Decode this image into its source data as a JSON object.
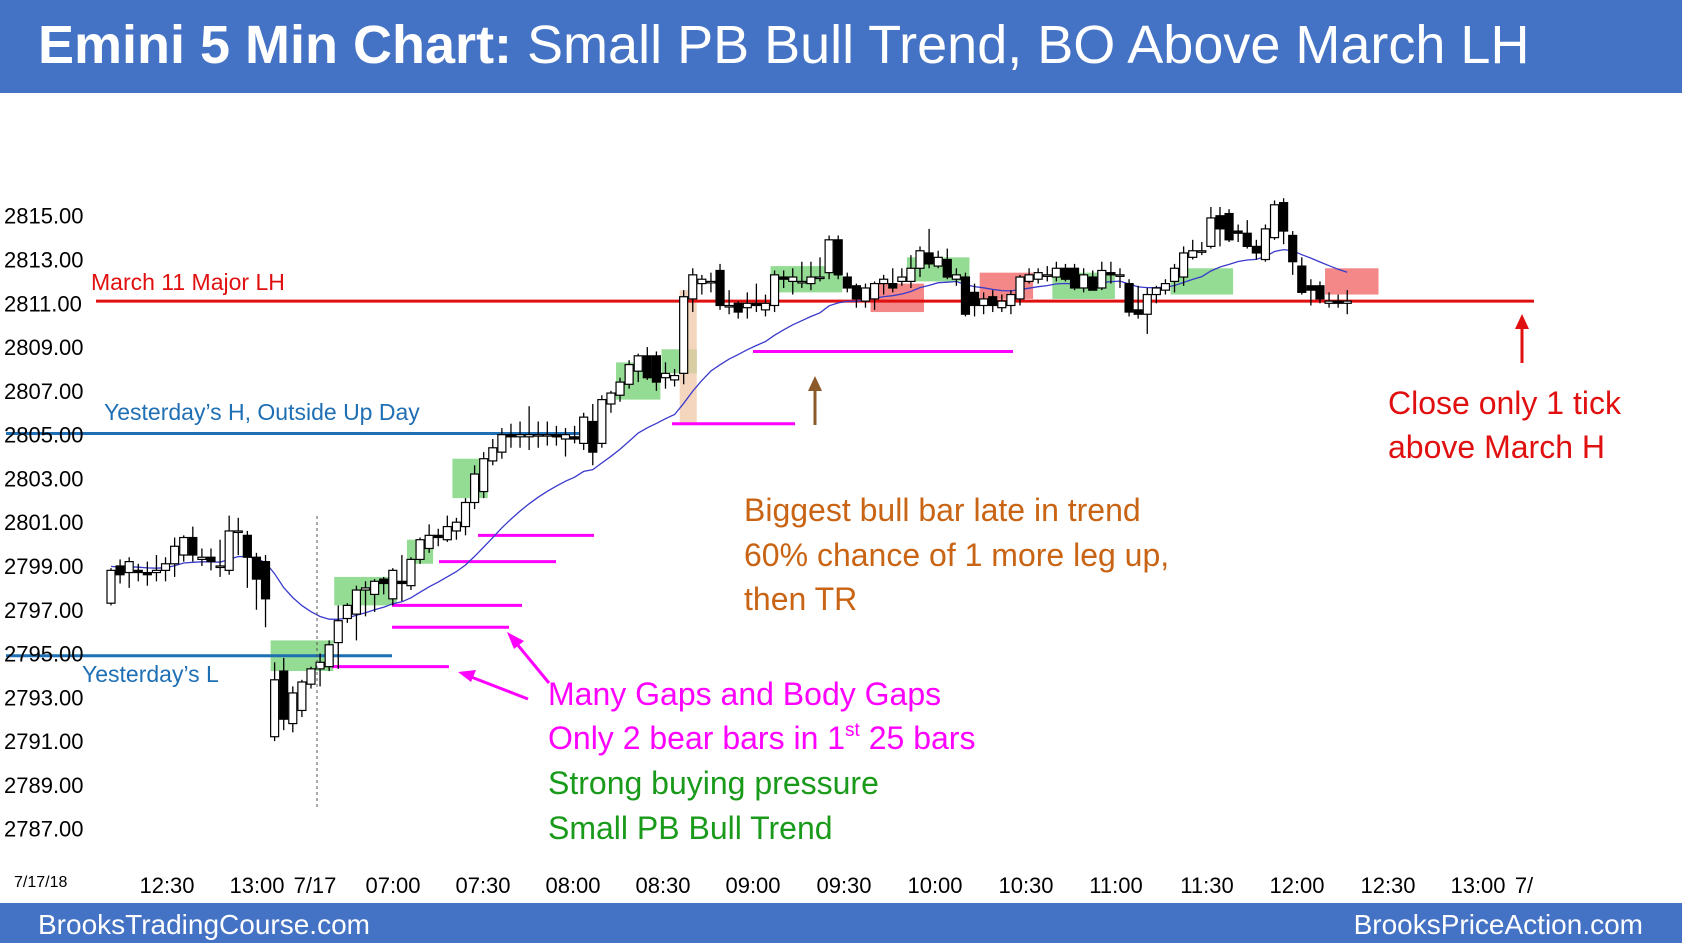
{
  "header": {
    "title_bold": "Emini 5 Min Chart:",
    "title_rest": " Small PB Bull Trend, BO Above March LH"
  },
  "footer": {
    "left": "BrooksTradingCourse.com",
    "right": "BrooksPriceAction.com"
  },
  "chart_data": {
    "type": "candlestick",
    "date_label": "7/17/18",
    "y_ticks": [
      "2815.00",
      "2813.00",
      "2811.00",
      "2809.00",
      "2807.00",
      "2805.00",
      "2803.00",
      "2801.00",
      "2799.00",
      "2797.00",
      "2795.00",
      "2793.00",
      "2791.00",
      "2789.00",
      "2787.00"
    ],
    "x_ticks": [
      "12:30",
      "13:00",
      "7/17",
      "07:00",
      "07:30",
      "08:00",
      "08:30",
      "09:00",
      "09:30",
      "10:00",
      "10:30",
      "11:00",
      "11:30",
      "12:00",
      "12:30",
      "13:00",
      "7/"
    ],
    "ylim": [
      2786.0,
      2816.5
    ],
    "horizontal_lines": [
      {
        "label": "March 11 Major LH",
        "price": 2811.1,
        "color": "#e01010"
      },
      {
        "label": "Yesterday’s H, Outside Up Day",
        "price": 2805.05,
        "color": "#1f6fb4"
      },
      {
        "label": "Yesterday’s L",
        "price": 2794.9,
        "color": "#1f6fb4"
      }
    ],
    "annotations": {
      "biggest_bull_bar": [
        "Biggest bull bar late in trend",
        "60% chance of 1 more leg up,",
        "then TR"
      ],
      "gaps_note": [
        "Many Gaps and Body Gaps",
        "Only 2 bear bars in 1st 25 bars"
      ],
      "gaps_note_sup": "st",
      "gaps_note_line2_parts": [
        "Only 2 bear bars in 1",
        " 25 bars"
      ],
      "pressure_note": [
        "Strong buying pressure",
        "Small PB Bull Trend"
      ],
      "close_note": [
        "Close only 1 tick",
        "above March H"
      ]
    },
    "colors": {
      "bull_highlight": "#70d070",
      "bear_highlight": "#f06060",
      "big_bar_highlight": "#f0c8a8",
      "ema": "#3a3acc",
      "gap_lines": "#ff00ff",
      "annotation_orange": "#c86414",
      "annotation_magenta": "#ff00ff",
      "annotation_green": "#1a9a1a",
      "annotation_red": "#e01010"
    },
    "bars": [
      {
        "o": 2797.3,
        "h": 2798.9,
        "l": 2797.2,
        "c": 2798.8
      },
      {
        "o": 2799.0,
        "h": 2799.3,
        "l": 2798.2,
        "c": 2798.6
      },
      {
        "o": 2798.7,
        "h": 2799.4,
        "l": 2798.0,
        "c": 2799.2
      },
      {
        "o": 2798.8,
        "h": 2799.1,
        "l": 2798.3,
        "c": 2798.7
      },
      {
        "o": 2798.7,
        "h": 2799.2,
        "l": 2798.1,
        "c": 2798.6
      },
      {
        "o": 2798.7,
        "h": 2799.5,
        "l": 2798.3,
        "c": 2798.8
      },
      {
        "o": 2798.8,
        "h": 2799.4,
        "l": 2798.3,
        "c": 2799.1
      },
      {
        "o": 2799.1,
        "h": 2800.3,
        "l": 2798.5,
        "c": 2799.9
      },
      {
        "o": 2799.5,
        "h": 2800.4,
        "l": 2799.2,
        "c": 2800.3
      },
      {
        "o": 2800.3,
        "h": 2800.8,
        "l": 2799.2,
        "c": 2799.5
      },
      {
        "o": 2799.3,
        "h": 2799.8,
        "l": 2799.0,
        "c": 2799.4
      },
      {
        "o": 2799.4,
        "h": 2799.8,
        "l": 2798.8,
        "c": 2799.2
      },
      {
        "o": 2799.0,
        "h": 2800.2,
        "l": 2798.5,
        "c": 2799.0
      },
      {
        "o": 2798.8,
        "h": 2801.3,
        "l": 2798.6,
        "c": 2800.6
      },
      {
        "o": 2800.6,
        "h": 2801.2,
        "l": 2799.5,
        "c": 2800.6
      },
      {
        "o": 2800.4,
        "h": 2800.6,
        "l": 2798.0,
        "c": 2799.4
      },
      {
        "o": 2799.4,
        "h": 2799.6,
        "l": 2797.0,
        "c": 2798.4
      },
      {
        "o": 2799.2,
        "h": 2799.5,
        "l": 2796.2,
        "c": 2797.5
      },
      {
        "o": 2791.2,
        "h": 2794.6,
        "l": 2791.0,
        "c": 2793.8
      },
      {
        "o": 2794.2,
        "h": 2794.8,
        "l": 2791.5,
        "c": 2792.0
      },
      {
        "o": 2791.8,
        "h": 2793.5,
        "l": 2791.4,
        "c": 2793.2
      },
      {
        "o": 2792.4,
        "h": 2793.8,
        "l": 2792.1,
        "c": 2793.7
      },
      {
        "o": 2793.6,
        "h": 2794.4,
        "l": 2793.4,
        "c": 2794.3
      },
      {
        "o": 2794.3,
        "h": 2795.0,
        "l": 2793.5,
        "c": 2794.6
      },
      {
        "o": 2794.4,
        "h": 2795.6,
        "l": 2794.2,
        "c": 2795.4
      },
      {
        "o": 2795.5,
        "h": 2797.2,
        "l": 2794.3,
        "c": 2796.5
      },
      {
        "o": 2796.6,
        "h": 2797.3,
        "l": 2796.4,
        "c": 2797.2
      },
      {
        "o": 2796.8,
        "h": 2798.1,
        "l": 2795.6,
        "c": 2797.9
      },
      {
        "o": 2797.9,
        "h": 2798.3,
        "l": 2796.7,
        "c": 2798.0
      },
      {
        "o": 2797.7,
        "h": 2798.4,
        "l": 2796.9,
        "c": 2798.3
      },
      {
        "o": 2798.4,
        "h": 2798.5,
        "l": 2797.7,
        "c": 2798.2
      },
      {
        "o": 2797.5,
        "h": 2798.9,
        "l": 2797.2,
        "c": 2798.8
      },
      {
        "o": 2798.3,
        "h": 2799.5,
        "l": 2797.4,
        "c": 2798.2
      },
      {
        "o": 2798.1,
        "h": 2799.4,
        "l": 2797.9,
        "c": 2799.3
      },
      {
        "o": 2799.3,
        "h": 2800.3,
        "l": 2799.1,
        "c": 2800.2
      },
      {
        "o": 2799.8,
        "h": 2800.9,
        "l": 2799.6,
        "c": 2800.4
      },
      {
        "o": 2800.4,
        "h": 2800.7,
        "l": 2799.9,
        "c": 2800.3
      },
      {
        "o": 2800.2,
        "h": 2801.3,
        "l": 2800.1,
        "c": 2800.8
      },
      {
        "o": 2800.6,
        "h": 2801.2,
        "l": 2800.2,
        "c": 2801.0
      },
      {
        "o": 2800.8,
        "h": 2802.1,
        "l": 2800.4,
        "c": 2801.9
      },
      {
        "o": 2801.9,
        "h": 2803.6,
        "l": 2801.6,
        "c": 2803.2
      },
      {
        "o": 2802.4,
        "h": 2804.2,
        "l": 2802.1,
        "c": 2803.9
      },
      {
        "o": 2803.8,
        "h": 2804.8,
        "l": 2803.6,
        "c": 2804.4
      },
      {
        "o": 2804.2,
        "h": 2805.3,
        "l": 2803.9,
        "c": 2805.0
      },
      {
        "o": 2805.0,
        "h": 2805.5,
        "l": 2804.4,
        "c": 2804.9
      },
      {
        "o": 2804.9,
        "h": 2805.6,
        "l": 2804.4,
        "c": 2805.0
      },
      {
        "o": 2804.9,
        "h": 2806.3,
        "l": 2804.3,
        "c": 2805.0
      },
      {
        "o": 2805.0,
        "h": 2805.6,
        "l": 2804.4,
        "c": 2805.0
      },
      {
        "o": 2805.0,
        "h": 2805.6,
        "l": 2804.5,
        "c": 2805.0
      },
      {
        "o": 2805.0,
        "h": 2805.4,
        "l": 2804.5,
        "c": 2804.9
      },
      {
        "o": 2804.8,
        "h": 2805.3,
        "l": 2804.0,
        "c": 2805.0
      },
      {
        "o": 2804.9,
        "h": 2805.4,
        "l": 2804.6,
        "c": 2804.8
      },
      {
        "o": 2804.6,
        "h": 2806.0,
        "l": 2804.3,
        "c": 2805.8
      },
      {
        "o": 2805.6,
        "h": 2806.4,
        "l": 2803.6,
        "c": 2804.2
      },
      {
        "o": 2804.6,
        "h": 2806.8,
        "l": 2804.4,
        "c": 2806.6
      },
      {
        "o": 2806.4,
        "h": 2807.0,
        "l": 2806.0,
        "c": 2806.9
      },
      {
        "o": 2806.8,
        "h": 2807.6,
        "l": 2806.5,
        "c": 2807.4
      },
      {
        "o": 2807.3,
        "h": 2808.4,
        "l": 2807.1,
        "c": 2808.2
      },
      {
        "o": 2807.9,
        "h": 2808.7,
        "l": 2807.4,
        "c": 2808.6
      },
      {
        "o": 2808.6,
        "h": 2809.0,
        "l": 2807.5,
        "c": 2807.6
      },
      {
        "o": 2808.6,
        "h": 2808.8,
        "l": 2807.0,
        "c": 2807.4
      },
      {
        "o": 2807.6,
        "h": 2808.3,
        "l": 2807.1,
        "c": 2807.8
      },
      {
        "o": 2807.5,
        "h": 2808.0,
        "l": 2807.2,
        "c": 2807.7
      },
      {
        "o": 2807.8,
        "h": 2811.6,
        "l": 2807.3,
        "c": 2811.3
      },
      {
        "o": 2811.2,
        "h": 2812.6,
        "l": 2810.6,
        "c": 2812.3
      },
      {
        "o": 2811.9,
        "h": 2812.3,
        "l": 2811.4,
        "c": 2812.1
      },
      {
        "o": 2812.0,
        "h": 2812.4,
        "l": 2811.5,
        "c": 2812.0
      },
      {
        "o": 2812.5,
        "h": 2812.8,
        "l": 2810.7,
        "c": 2810.9
      },
      {
        "o": 2810.9,
        "h": 2811.6,
        "l": 2810.5,
        "c": 2810.9
      },
      {
        "o": 2811.0,
        "h": 2811.1,
        "l": 2810.3,
        "c": 2810.6
      },
      {
        "o": 2810.8,
        "h": 2811.5,
        "l": 2810.3,
        "c": 2811.0
      },
      {
        "o": 2811.0,
        "h": 2811.9,
        "l": 2810.6,
        "c": 2810.9
      },
      {
        "o": 2810.7,
        "h": 2811.4,
        "l": 2810.4,
        "c": 2811.0
      },
      {
        "o": 2810.9,
        "h": 2812.5,
        "l": 2810.6,
        "c": 2812.3
      },
      {
        "o": 2812.2,
        "h": 2812.5,
        "l": 2811.7,
        "c": 2812.1
      },
      {
        "o": 2812.0,
        "h": 2812.6,
        "l": 2811.4,
        "c": 2812.2
      },
      {
        "o": 2812.0,
        "h": 2812.9,
        "l": 2811.7,
        "c": 2812.0
      },
      {
        "o": 2811.9,
        "h": 2812.9,
        "l": 2811.6,
        "c": 2812.2
      },
      {
        "o": 2812.2,
        "h": 2813.1,
        "l": 2812.0,
        "c": 2812.2
      },
      {
        "o": 2812.4,
        "h": 2814.1,
        "l": 2812.1,
        "c": 2813.9
      },
      {
        "o": 2813.9,
        "h": 2814.1,
        "l": 2812.1,
        "c": 2812.3
      },
      {
        "o": 2812.2,
        "h": 2812.4,
        "l": 2811.5,
        "c": 2811.7
      },
      {
        "o": 2811.8,
        "h": 2811.9,
        "l": 2810.8,
        "c": 2811.2
      },
      {
        "o": 2811.1,
        "h": 2811.9,
        "l": 2810.8,
        "c": 2811.7
      },
      {
        "o": 2811.2,
        "h": 2812.0,
        "l": 2810.7,
        "c": 2811.9
      },
      {
        "o": 2811.9,
        "h": 2812.3,
        "l": 2811.4,
        "c": 2812.1
      },
      {
        "o": 2811.9,
        "h": 2812.6,
        "l": 2811.5,
        "c": 2811.7
      },
      {
        "o": 2812.0,
        "h": 2812.6,
        "l": 2811.8,
        "c": 2812.2
      },
      {
        "o": 2812.0,
        "h": 2813.2,
        "l": 2811.7,
        "c": 2812.6
      },
      {
        "o": 2812.6,
        "h": 2813.6,
        "l": 2812.2,
        "c": 2813.4
      },
      {
        "o": 2813.3,
        "h": 2814.4,
        "l": 2812.6,
        "c": 2812.8
      },
      {
        "o": 2812.7,
        "h": 2813.4,
        "l": 2812.6,
        "c": 2813.1
      },
      {
        "o": 2813.0,
        "h": 2813.5,
        "l": 2812.1,
        "c": 2812.2
      },
      {
        "o": 2812.1,
        "h": 2812.6,
        "l": 2811.8,
        "c": 2812.3
      },
      {
        "o": 2812.2,
        "h": 2812.4,
        "l": 2810.4,
        "c": 2810.5
      },
      {
        "o": 2811.5,
        "h": 2811.9,
        "l": 2810.4,
        "c": 2810.9
      },
      {
        "o": 2810.9,
        "h": 2811.5,
        "l": 2810.5,
        "c": 2811.2
      },
      {
        "o": 2811.3,
        "h": 2811.6,
        "l": 2810.6,
        "c": 2810.9
      },
      {
        "o": 2810.8,
        "h": 2811.4,
        "l": 2810.6,
        "c": 2811.1
      },
      {
        "o": 2810.9,
        "h": 2811.6,
        "l": 2810.5,
        "c": 2811.4
      },
      {
        "o": 2811.2,
        "h": 2812.3,
        "l": 2810.9,
        "c": 2812.2
      },
      {
        "o": 2812.0,
        "h": 2812.6,
        "l": 2811.9,
        "c": 2812.3
      },
      {
        "o": 2812.1,
        "h": 2812.6,
        "l": 2811.9,
        "c": 2812.4
      },
      {
        "o": 2812.3,
        "h": 2812.7,
        "l": 2812.0,
        "c": 2812.3
      },
      {
        "o": 2812.2,
        "h": 2812.9,
        "l": 2812.0,
        "c": 2812.6
      },
      {
        "o": 2812.6,
        "h": 2812.8,
        "l": 2812.0,
        "c": 2812.1
      },
      {
        "o": 2812.6,
        "h": 2812.8,
        "l": 2811.6,
        "c": 2811.7
      },
      {
        "o": 2811.7,
        "h": 2812.6,
        "l": 2811.5,
        "c": 2812.3
      },
      {
        "o": 2812.2,
        "h": 2812.5,
        "l": 2811.6,
        "c": 2811.6
      },
      {
        "o": 2811.7,
        "h": 2812.9,
        "l": 2811.6,
        "c": 2812.5
      },
      {
        "o": 2812.4,
        "h": 2812.9,
        "l": 2811.9,
        "c": 2812.3
      },
      {
        "o": 2812.3,
        "h": 2812.6,
        "l": 2811.7,
        "c": 2812.3
      },
      {
        "o": 2811.9,
        "h": 2812.1,
        "l": 2810.4,
        "c": 2810.6
      },
      {
        "o": 2810.7,
        "h": 2811.8,
        "l": 2810.3,
        "c": 2810.5
      },
      {
        "o": 2810.5,
        "h": 2811.7,
        "l": 2809.6,
        "c": 2811.4
      },
      {
        "o": 2811.4,
        "h": 2811.8,
        "l": 2811.0,
        "c": 2811.7
      },
      {
        "o": 2811.6,
        "h": 2812.1,
        "l": 2811.4,
        "c": 2811.9
      },
      {
        "o": 2812.0,
        "h": 2812.8,
        "l": 2811.5,
        "c": 2812.6
      },
      {
        "o": 2812.2,
        "h": 2813.6,
        "l": 2811.8,
        "c": 2813.3
      },
      {
        "o": 2813.1,
        "h": 2813.9,
        "l": 2813.0,
        "c": 2813.4
      },
      {
        "o": 2813.4,
        "h": 2813.8,
        "l": 2813.2,
        "c": 2813.4
      },
      {
        "o": 2813.6,
        "h": 2815.4,
        "l": 2813.5,
        "c": 2814.9
      },
      {
        "o": 2815.0,
        "h": 2815.4,
        "l": 2813.6,
        "c": 2814.4
      },
      {
        "o": 2815.1,
        "h": 2815.3,
        "l": 2813.8,
        "c": 2813.9
      },
      {
        "o": 2814.3,
        "h": 2814.6,
        "l": 2813.8,
        "c": 2814.2
      },
      {
        "o": 2814.2,
        "h": 2814.8,
        "l": 2813.5,
        "c": 2813.6
      },
      {
        "o": 2813.6,
        "h": 2813.9,
        "l": 2813.0,
        "c": 2813.3
      },
      {
        "o": 2813.0,
        "h": 2814.6,
        "l": 2812.9,
        "c": 2814.4
      },
      {
        "o": 2814.0,
        "h": 2815.7,
        "l": 2813.9,
        "c": 2815.5
      },
      {
        "o": 2815.6,
        "h": 2815.8,
        "l": 2813.7,
        "c": 2814.3
      },
      {
        "o": 2814.1,
        "h": 2814.3,
        "l": 2812.3,
        "c": 2812.9
      },
      {
        "o": 2812.7,
        "h": 2813.1,
        "l": 2811.4,
        "c": 2811.5
      },
      {
        "o": 2811.8,
        "h": 2812.1,
        "l": 2810.9,
        "c": 2811.6
      },
      {
        "o": 2811.8,
        "h": 2812.0,
        "l": 2811.0,
        "c": 2811.2
      },
      {
        "o": 2811.0,
        "h": 2811.5,
        "l": 2810.8,
        "c": 2811.1
      },
      {
        "o": 2811.1,
        "h": 2811.4,
        "l": 2810.8,
        "c": 2811.0
      },
      {
        "o": 2811.0,
        "h": 2811.6,
        "l": 2810.5,
        "c": 2811.1
      }
    ]
  }
}
